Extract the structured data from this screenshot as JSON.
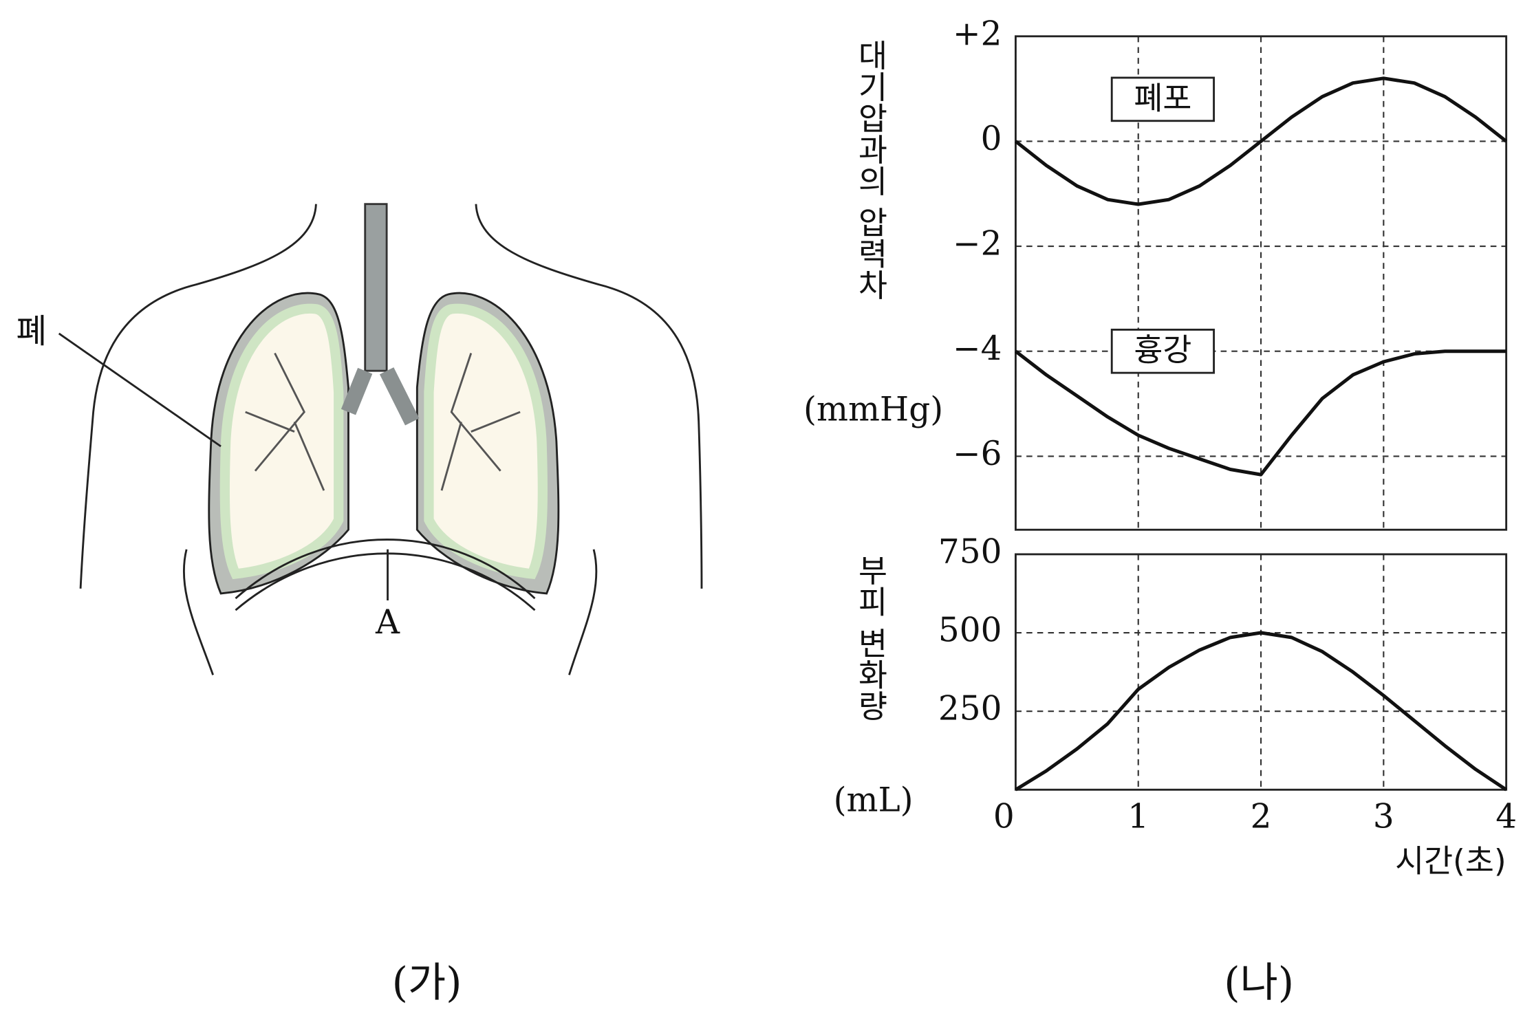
{
  "diagram": {
    "lung_label": "폐",
    "diaphragm_label": "A",
    "caption": "(가)"
  },
  "caption": "(나)",
  "chart_data": [
    {
      "type": "line",
      "y_label": "대기압과의 압력차",
      "y_unit": "(mmHg)",
      "x": [
        0,
        0.25,
        0.5,
        0.75,
        1,
        1.25,
        1.5,
        1.75,
        2,
        2.25,
        2.5,
        2.75,
        3,
        3.25,
        3.5,
        3.75,
        4
      ],
      "xlim": [
        0,
        4
      ],
      "xticks": [
        0,
        1,
        2,
        3,
        4
      ],
      "x_tick_labels": false,
      "ylim": [
        -7.4,
        2
      ],
      "yticks": [
        {
          "value": 2,
          "label": "+2"
        },
        0,
        {
          "value": -2,
          "label": "−2"
        },
        {
          "value": -4,
          "label": "−4"
        },
        {
          "value": -6,
          "label": "−6"
        }
      ],
      "grid": true,
      "series": [
        {
          "name": "폐포",
          "color": "#111111",
          "values": [
            0,
            -0.46,
            -0.85,
            -1.11,
            -1.2,
            -1.11,
            -0.85,
            -0.46,
            0,
            0.46,
            0.85,
            1.11,
            1.2,
            1.11,
            0.85,
            0.46,
            0
          ]
        },
        {
          "name": "흉강",
          "color": "#111111",
          "values": [
            -4,
            -4.45,
            -4.85,
            -5.25,
            -5.6,
            -5.85,
            -6.05,
            -6.25,
            -6.35,
            -5.6,
            -4.9,
            -4.45,
            -4.2,
            -4.05,
            -4,
            -4,
            -4
          ]
        }
      ]
    },
    {
      "type": "line",
      "y_label": "부피 변화량",
      "y_unit": "(mL)",
      "x_label": "시간(초)",
      "x": [
        0,
        0.25,
        0.5,
        0.75,
        1,
        1.25,
        1.5,
        1.75,
        2,
        2.25,
        2.5,
        2.75,
        3,
        3.25,
        3.5,
        3.75,
        4
      ],
      "xlim": [
        0,
        4
      ],
      "xticks": [
        0,
        1,
        2,
        3,
        4
      ],
      "x_tick_labels": true,
      "ylim": [
        0,
        750
      ],
      "yticks": [
        250,
        500,
        750
      ],
      "grid": true,
      "series": [
        {
          "color": "#111111",
          "values": [
            0,
            60,
            130,
            210,
            320,
            390,
            445,
            485,
            500,
            485,
            440,
            375,
            300,
            220,
            140,
            65,
            0
          ]
        }
      ]
    }
  ]
}
